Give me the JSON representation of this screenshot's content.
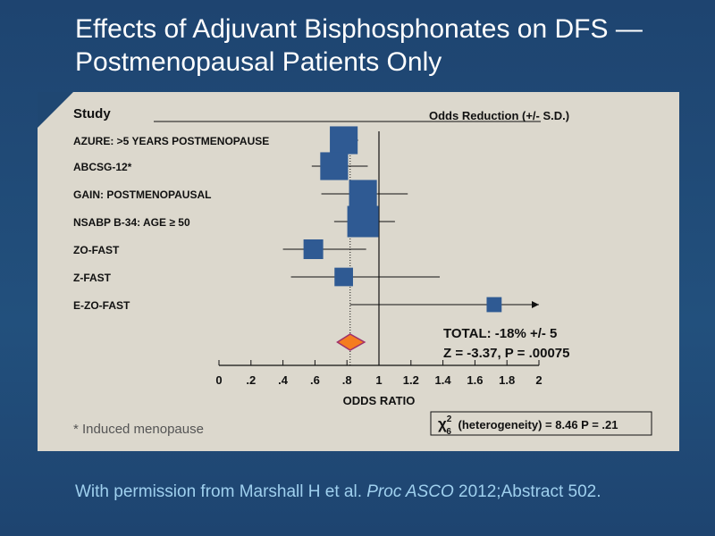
{
  "title": {
    "line1": "Effects of Adjuvant Bisphosphonates on DFS —",
    "line2": "Postmenopausal Patients Only"
  },
  "chart_data": {
    "type": "forest",
    "header_left": "Study",
    "header_right": "Odds Reduction (+/- S.D.)",
    "studies": [
      {
        "label": "AZURE: >5 YEARS POSTMENOPAUSE",
        "or": 0.78,
        "ci": [
          0.7,
          0.87
        ],
        "weight": 0.85
      },
      {
        "label": "ABCSG-12*",
        "or": 0.72,
        "ci": [
          0.58,
          0.93
        ],
        "weight": 0.85
      },
      {
        "label": "GAIN: POSTMENOPAUSAL",
        "or": 0.9,
        "ci": [
          0.64,
          1.18
        ],
        "weight": 0.85
      },
      {
        "label": "NSABP B-34: AGE ≥ 50",
        "or": 0.9,
        "ci": [
          0.72,
          1.1
        ],
        "weight": 1.0
      },
      {
        "label": "ZO-FAST",
        "or": 0.59,
        "ci": [
          0.4,
          0.92
        ],
        "weight": 0.5
      },
      {
        "label": "Z-FAST",
        "or": 0.78,
        "ci": [
          0.45,
          1.38
        ],
        "weight": 0.45
      },
      {
        "label": "E-ZO-FAST",
        "or": 1.72,
        "ci": [
          0.82,
          2.0
        ],
        "weight": 0.3,
        "arrow": true
      }
    ],
    "pooled": {
      "or": 0.82,
      "ci": [
        0.74,
        0.91
      ]
    },
    "total_label": "TOTAL: -18% +/- 5",
    "z_label": "Z = -3.37,  P = .00075",
    "x_ticks": [
      "0",
      ".2",
      ".4",
      ".6",
      ".8",
      "1",
      "1.2",
      "1.4",
      "1.6",
      "1.8",
      "2"
    ],
    "x_tick_values": [
      0,
      0.2,
      0.4,
      0.6,
      0.8,
      1.0,
      1.2,
      1.4,
      1.6,
      1.8,
      2.0
    ],
    "xlim": [
      0,
      2
    ],
    "xlabel": "ODDS RATIO",
    "reference_line": 1,
    "footnote": "* Induced menopause",
    "heterogeneity": {
      "chi": "χ",
      "sup": "2",
      "sub": "6",
      "text": "(heterogeneity) = 8.46  P = .21"
    },
    "colors": {
      "square": "#2f5a93",
      "diamond": "#f47c20",
      "diamond_border": "#a0306a",
      "line": "#111111"
    }
  },
  "citation": {
    "prefix": "With permission from Marshall H et al. ",
    "journal": "Proc ASCO",
    "suffix": " 2012;Abstract 502."
  }
}
